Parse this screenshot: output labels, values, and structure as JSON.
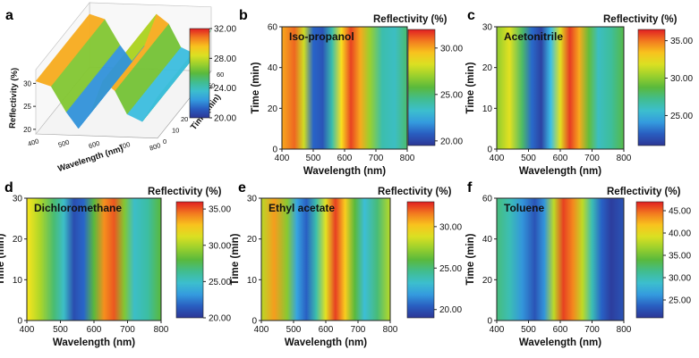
{
  "chart_data": [
    {
      "id": "a",
      "type": "surface3d",
      "panel_letter": "a",
      "xlabel": "Wavelength (nm)",
      "ylabel": "Time (min)",
      "zlabel": "Reflectivity (%)",
      "x_ticks": [
        "400",
        "500",
        "600",
        "700",
        "800"
      ],
      "y_ticks": [
        "0",
        "10",
        "20",
        "30",
        "40",
        "50",
        "60"
      ],
      "z_ticks": [
        "20",
        "25",
        "30"
      ],
      "colorbar_ticks": [
        "20.00",
        "24.00",
        "28.00",
        "32.00"
      ],
      "zlim": [
        20,
        32
      ],
      "wavelength": [
        400,
        450,
        500,
        540,
        580,
        620,
        660,
        700,
        750,
        800
      ],
      "reflectivity": [
        30.5,
        29.5,
        24,
        20.5,
        24,
        31,
        29,
        24,
        22.5,
        28
      ]
    },
    {
      "id": "b",
      "type": "heatmap",
      "panel_letter": "b",
      "solvent": "Iso-propanol",
      "colorbar_title": "Reflectivity (%)",
      "xlabel": "Wavelength (nm)",
      "ylabel": "Time (min)",
      "xlim": [
        400,
        800
      ],
      "ylim": [
        0,
        60
      ],
      "x_ticks": [
        "400",
        "500",
        "600",
        "700",
        "800"
      ],
      "y_ticks": [
        "0",
        "20",
        "40",
        "60"
      ],
      "colorbar_ticks": [
        "20.00",
        "25.00",
        "30.00"
      ],
      "zlim": [
        19.5,
        32
      ],
      "wavelength": [
        400,
        440,
        470,
        500,
        530,
        560,
        590,
        620,
        650,
        680,
        720,
        760,
        800
      ],
      "reflectivity": [
        30,
        31,
        28,
        21,
        20.5,
        24,
        29,
        31.5,
        30,
        27,
        24,
        23.5,
        25
      ]
    },
    {
      "id": "c",
      "type": "heatmap",
      "panel_letter": "c",
      "solvent": "Acetonitrile",
      "colorbar_title": "Reflectivity (%)",
      "xlabel": "Wavelength (nm)",
      "ylabel": "Time (min)",
      "xlim": [
        400,
        800
      ],
      "ylim": [
        0,
        30
      ],
      "x_ticks": [
        "400",
        "500",
        "600",
        "700",
        "800"
      ],
      "y_ticks": [
        "0",
        "10",
        "20",
        "30"
      ],
      "colorbar_ticks": [
        "25.00",
        "30.00",
        "35.00"
      ],
      "zlim": [
        21,
        36.5
      ],
      "wavelength": [
        400,
        440,
        480,
        510,
        540,
        570,
        600,
        630,
        660,
        690,
        720,
        760,
        800
      ],
      "reflectivity": [
        30,
        32,
        28,
        23,
        21.5,
        25,
        32,
        36,
        34,
        29,
        26,
        27,
        28.5
      ]
    },
    {
      "id": "d",
      "type": "heatmap",
      "panel_letter": "d",
      "solvent": "Dichloromethane",
      "colorbar_title": "Reflectivity (%)",
      "xlabel": "Wavelength (nm)",
      "ylabel": "Time (min)",
      "xlim": [
        400,
        800
      ],
      "ylim": [
        0,
        30
      ],
      "x_ticks": [
        "400",
        "500",
        "600",
        "700",
        "800"
      ],
      "y_ticks": [
        "0",
        "10",
        "20",
        "30"
      ],
      "colorbar_ticks": [
        "20.00",
        "25.00",
        "30.00",
        "35.00"
      ],
      "zlim": [
        20,
        36
      ],
      "wavelength": [
        400,
        440,
        480,
        510,
        540,
        570,
        600,
        630,
        660,
        690,
        720,
        760,
        800
      ],
      "reflectivity": [
        32,
        30,
        27,
        25,
        21,
        22,
        28,
        34,
        35,
        29,
        25,
        26,
        28
      ]
    },
    {
      "id": "e",
      "type": "heatmap",
      "panel_letter": "e",
      "solvent": "Ethyl acetate",
      "colorbar_title": "Reflectivity (%)",
      "xlabel": "Wavelength (nm)",
      "ylabel": "Time (min)",
      "xlim": [
        400,
        800
      ],
      "ylim": [
        0,
        30
      ],
      "x_ticks": [
        "400",
        "500",
        "600",
        "700",
        "800"
      ],
      "y_ticks": [
        "0",
        "10",
        "20",
        "30"
      ],
      "colorbar_ticks": [
        "20.00",
        "25.00",
        "30.00"
      ],
      "zlim": [
        19,
        33
      ],
      "wavelength": [
        400,
        440,
        480,
        510,
        540,
        570,
        600,
        630,
        660,
        690,
        720,
        760,
        800
      ],
      "reflectivity": [
        28,
        31,
        27,
        22,
        20.5,
        24,
        29,
        32.5,
        30,
        26,
        23,
        25,
        28
      ]
    },
    {
      "id": "f",
      "type": "heatmap",
      "panel_letter": "f",
      "solvent": "Toluene",
      "colorbar_title": "Reflectivity (%)",
      "xlabel": "Wavelength (nm)",
      "ylabel": "Time (min)",
      "xlim": [
        400,
        800
      ],
      "ylim": [
        0,
        60
      ],
      "x_ticks": [
        "400",
        "500",
        "600",
        "700",
        "800"
      ],
      "y_ticks": [
        "0",
        "20",
        "40",
        "60"
      ],
      "colorbar_ticks": [
        "25.00",
        "30.00",
        "35.00",
        "40.00",
        "45.00"
      ],
      "zlim": [
        21,
        47
      ],
      "wavelength": [
        400,
        440,
        480,
        520,
        550,
        580,
        610,
        640,
        670,
        700,
        730,
        760,
        800
      ],
      "reflectivity": [
        32,
        30,
        26,
        23,
        26,
        38,
        46,
        44,
        38,
        30,
        24,
        21.5,
        23
      ]
    }
  ]
}
